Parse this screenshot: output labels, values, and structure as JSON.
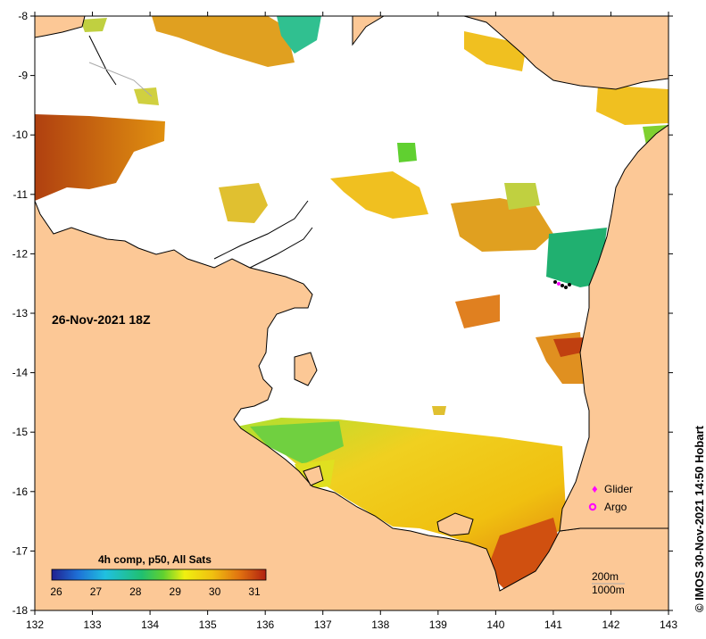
{
  "map": {
    "x_ticks": [
      "132",
      "133",
      "134",
      "135",
      "136",
      "137",
      "138",
      "139",
      "140",
      "141",
      "142",
      "143"
    ],
    "y_ticks": [
      "-8",
      "-9",
      "-10",
      "-11",
      "-12",
      "-13",
      "-14",
      "-15",
      "-16",
      "-17",
      "-18"
    ],
    "land_color": "#fcc896",
    "sea_no_data_color": "#ffffff",
    "coastline_color": "#000000"
  },
  "overlay": {
    "date_label": "26-Nov-2021 18Z",
    "legend": {
      "glider_label": "Glider",
      "argo_label": "Argo",
      "marker_color": "#ff00ff"
    },
    "scale": {
      "contour_200": "200m",
      "contour_1000": "1000m"
    }
  },
  "colorbar": {
    "title": "4h comp, p50, All Sats",
    "ticks": [
      "26",
      "27",
      "28",
      "29",
      "30",
      "31"
    ],
    "colors": [
      "#20208f",
      "#1e6fd6",
      "#20c0e0",
      "#20c070",
      "#60d030",
      "#f0f010",
      "#f0c010",
      "#e07010",
      "#b02010"
    ]
  },
  "credit": "©  IMOS 30-Nov-2021 14:50 Hobart"
}
